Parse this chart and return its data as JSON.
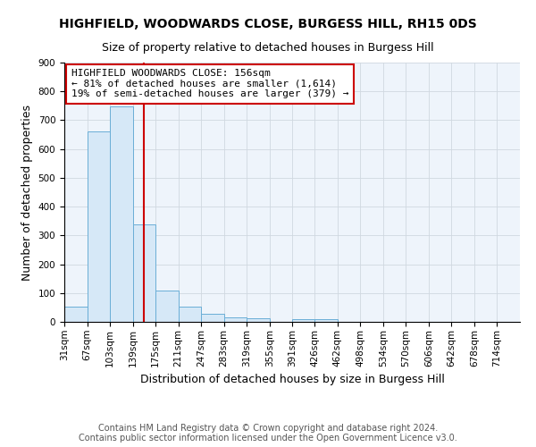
{
  "title1": "HIGHFIELD, WOODWARDS CLOSE, BURGESS HILL, RH15 0DS",
  "title2": "Size of property relative to detached houses in Burgess Hill",
  "xlabel": "Distribution of detached houses by size in Burgess Hill",
  "ylabel": "Number of detached properties",
  "footnote1": "Contains HM Land Registry data © Crown copyright and database right 2024.",
  "footnote2": "Contains public sector information licensed under the Open Government Licence v3.0.",
  "annotation_title": "HIGHFIELD WOODWARDS CLOSE: 156sqm",
  "annotation_line1": "← 81% of detached houses are smaller (1,614)",
  "annotation_line2": "19% of semi-detached houses are larger (379) →",
  "property_size": 156,
  "bin_edges": [
    31,
    67,
    103,
    139,
    175,
    211,
    247,
    283,
    319,
    355,
    391,
    426,
    462,
    498,
    534,
    570,
    606,
    642,
    678,
    714,
    750
  ],
  "bar_heights": [
    52,
    660,
    748,
    338,
    108,
    52,
    27,
    15,
    12,
    0,
    8,
    8,
    0,
    0,
    0,
    0,
    0,
    0,
    0,
    0
  ],
  "bar_color": "#d6e8f7",
  "bar_edge_color": "#6aaed6",
  "vline_color": "#cc0000",
  "vline_x": 156,
  "ylim": [
    0,
    900
  ],
  "yticks": [
    0,
    100,
    200,
    300,
    400,
    500,
    600,
    700,
    800,
    900
  ],
  "grid_color": "#d0d8e0",
  "background_color": "#eef4fb",
  "annotation_box_color": "#ffffff",
  "annotation_box_edge": "#cc0000",
  "title_fontsize": 10,
  "subtitle_fontsize": 9,
  "axis_label_fontsize": 9,
  "tick_fontsize": 7.5,
  "annotation_fontsize": 8,
  "footnote_fontsize": 7
}
